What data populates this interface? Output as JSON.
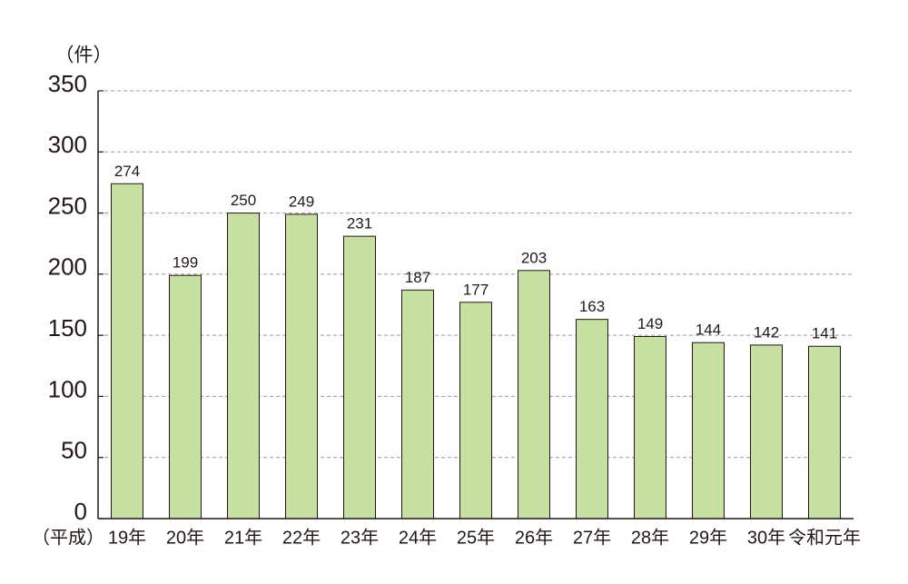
{
  "chart_data": {
    "type": "bar",
    "y_axis_label": "（件）",
    "x_axis_label": "（平成）",
    "categories": [
      "19年",
      "20年",
      "21年",
      "22年",
      "23年",
      "24年",
      "25年",
      "26年",
      "27年",
      "28年",
      "29年",
      "30年",
      "令和元年"
    ],
    "values": [
      274,
      199,
      250,
      249,
      231,
      187,
      177,
      203,
      163,
      149,
      144,
      142,
      141
    ],
    "color": "#c5e0a0",
    "ylim": [
      0,
      350
    ],
    "yticks": [
      0,
      50,
      100,
      150,
      200,
      250,
      300,
      350
    ],
    "grid": true
  }
}
